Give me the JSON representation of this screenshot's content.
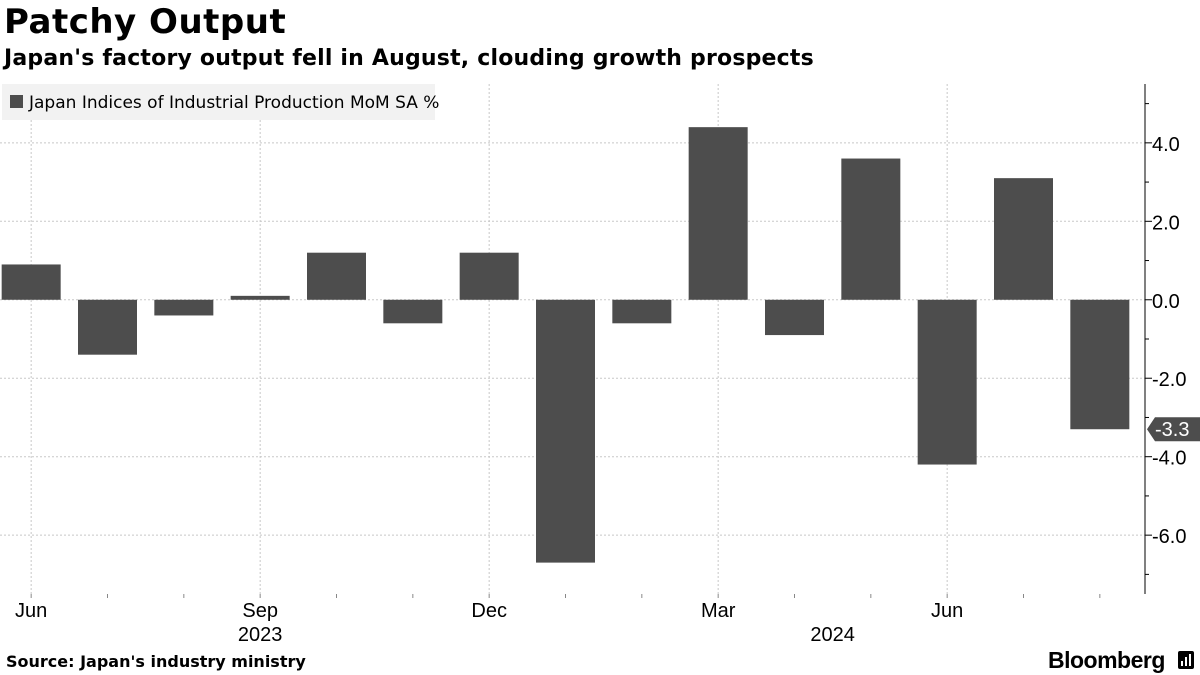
{
  "header": {
    "title": "Patchy Output",
    "subtitle": "Japan's factory output fell in August, clouding growth prospects"
  },
  "footer": {
    "source": "Source: Japan's industry ministry",
    "brand": "Bloomberg"
  },
  "colors": {
    "bar": "#4d4d4d",
    "grid": "#c8c8c8",
    "axis": "#000000",
    "legend_bg": "#f2f2f2",
    "label_bg": "#4d4d4d"
  },
  "chart_data": {
    "type": "bar",
    "title": "Patchy Output",
    "subtitle": "Japan's factory output fell in August, clouding growth prospects",
    "legend": [
      "Japan Indices of Industrial Production MoM SA %"
    ],
    "legend_position": "top-left",
    "categories": [
      "2023-06",
      "2023-07",
      "2023-08",
      "2023-09",
      "2023-10",
      "2023-11",
      "2023-12",
      "2024-01",
      "2024-02",
      "2024-03",
      "2024-04",
      "2024-05",
      "2024-06",
      "2024-07",
      "2024-08"
    ],
    "series": [
      {
        "name": "Japan Indices of Industrial Production MoM SA %",
        "values": [
          0.9,
          -1.4,
          -0.4,
          0.1,
          1.2,
          -0.6,
          1.2,
          -6.7,
          -0.6,
          4.4,
          -0.9,
          3.6,
          -4.2,
          3.1,
          -3.3
        ]
      }
    ],
    "ylim": [
      -7.5,
      5.5
    ],
    "yticks": [
      4.0,
      2.0,
      0.0,
      -2.0,
      -4.0,
      -6.0
    ],
    "ytick_labels": [
      "4.0",
      "2.0",
      "0.0",
      "-2.0",
      "-4.0",
      "-6.0"
    ],
    "y_axis_side": "right",
    "xticks": [
      {
        "index": 0,
        "label": "Jun"
      },
      {
        "index": 3,
        "label": "Sep"
      },
      {
        "index": 6,
        "label": "Dec"
      },
      {
        "index": 9,
        "label": "Mar"
      },
      {
        "index": 12,
        "label": "Jun"
      }
    ],
    "year_labels": [
      {
        "center_index": 3,
        "label": "2023"
      },
      {
        "center_index": 10.5,
        "label": "2024"
      }
    ],
    "last_value_label": "-3.3",
    "grid": true,
    "xlabel": "",
    "ylabel": ""
  }
}
